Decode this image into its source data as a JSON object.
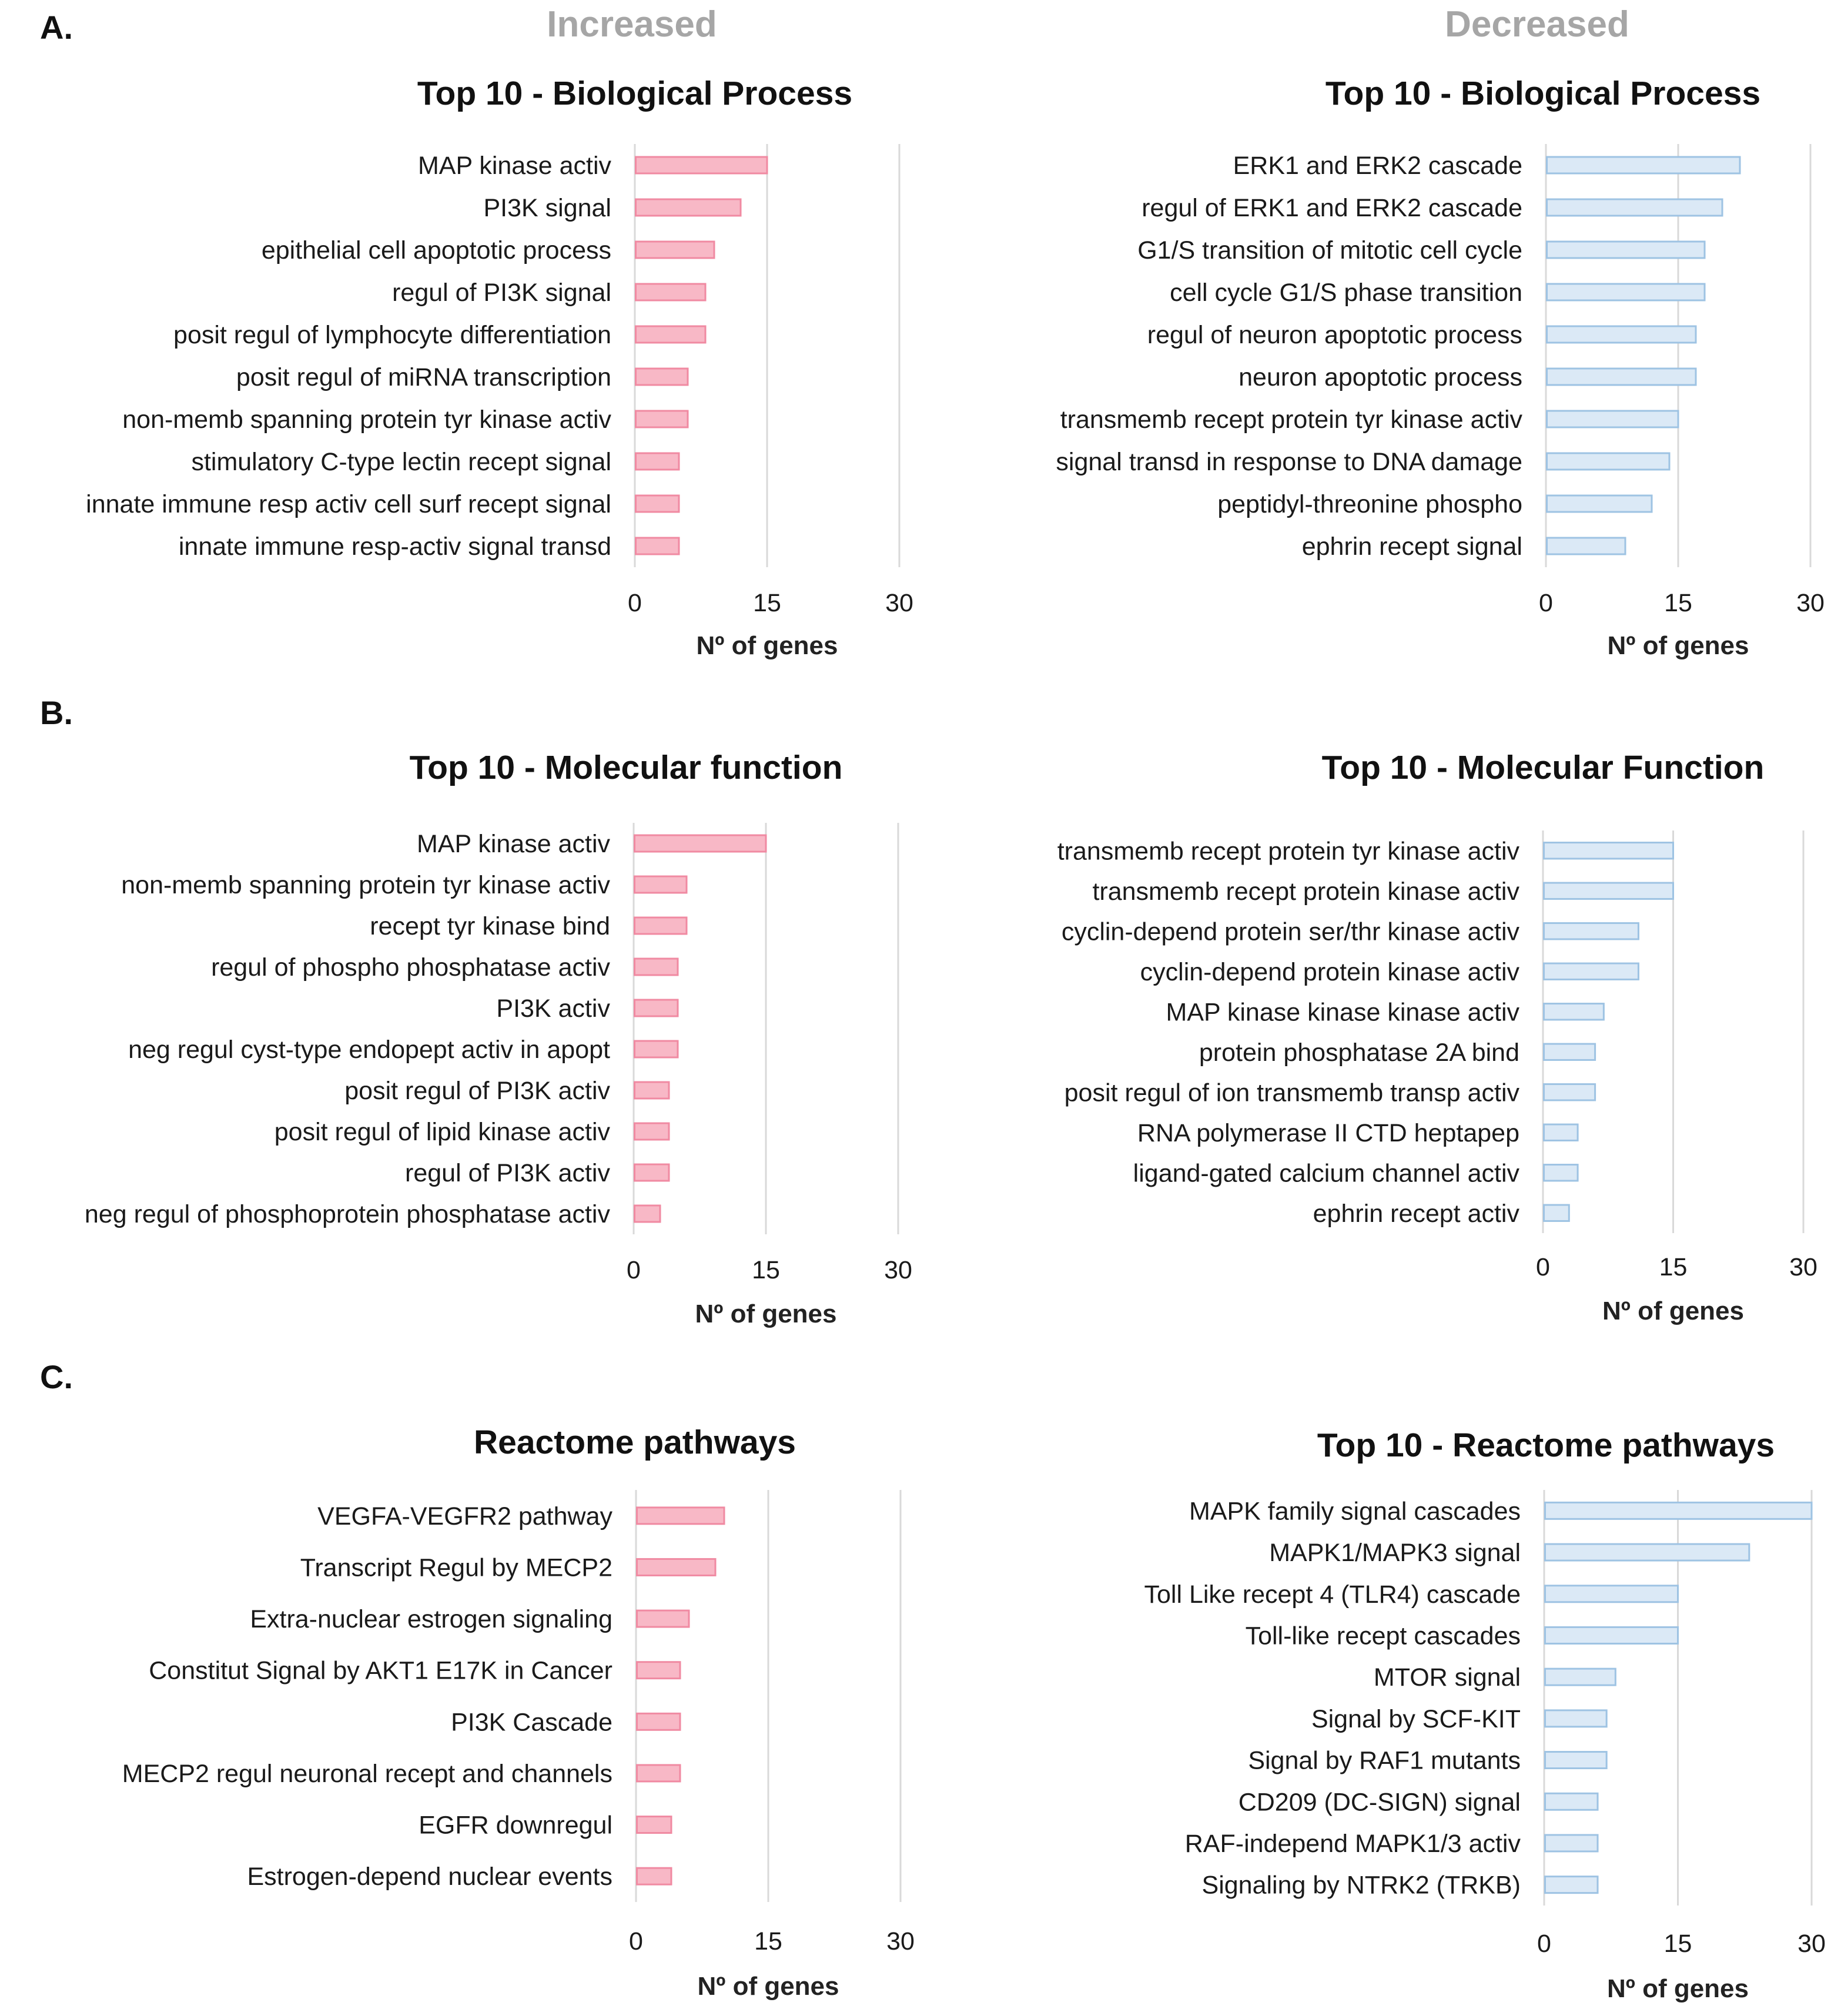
{
  "headers": {
    "left": "Increased",
    "right": "Decreased"
  },
  "sections": [
    {
      "label": "A.",
      "panel_keys": [
        "A_increased",
        "A_decreased"
      ]
    },
    {
      "label": "B.",
      "panel_keys": [
        "B_increased",
        "B_decreased"
      ]
    },
    {
      "label": "C.",
      "panel_keys": [
        "C_increased",
        "C_decreased"
      ]
    }
  ],
  "colors": {
    "increased_fill": "#f8b8c6",
    "increased_stroke": "#f08aa2",
    "decreased_fill": "#dbe9f6",
    "decreased_stroke": "#9ec3e3",
    "grid": "#d9d9d9",
    "text": "#1a1a1a",
    "axis_title": "#222222"
  },
  "chart_data": [
    {
      "key": "A_increased",
      "type": "bar",
      "orientation": "horizontal",
      "group": "Increased",
      "title": "Top 10 - Biological Process",
      "xlabel": "Nº of genes",
      "xlim": [
        0,
        30
      ],
      "xticks": [
        "0",
        "15",
        "30"
      ],
      "categories": [
        "MAP kinase activ",
        "PI3K signal",
        "epithelial cell apoptotic process",
        "regul of PI3K signal",
        "posit regul of lymphocyte differentiation",
        "posit regul of miRNA transcription",
        "non-memb spanning protein tyr kinase activ",
        "stimulatory C-type lectin recept signal",
        "innate immune resp activ cell surf recept signal",
        "innate immune resp-activ signal transd"
      ],
      "values": [
        15,
        12,
        9,
        8,
        8,
        6,
        6,
        5,
        5,
        5
      ]
    },
    {
      "key": "A_decreased",
      "type": "bar",
      "orientation": "horizontal",
      "group": "Decreased",
      "title": "Top 10 - Biological Process",
      "xlabel": "Nº of genes",
      "xlim": [
        0,
        30
      ],
      "xticks": [
        "0",
        "15",
        "30"
      ],
      "categories": [
        "ERK1 and ERK2 cascade",
        "regul of ERK1 and ERK2 cascade",
        "G1/S transition of mitotic cell cycle",
        "cell cycle G1/S phase transition",
        "regul of neuron apoptotic process",
        "neuron apoptotic process",
        "transmemb recept protein tyr kinase activ",
        "signal transd in response to DNA damage",
        "peptidyl-threonine phospho",
        "ephrin recept signal"
      ],
      "values": [
        22,
        20,
        18,
        18,
        17,
        17,
        15,
        14,
        12,
        9
      ]
    },
    {
      "key": "B_increased",
      "type": "bar",
      "orientation": "horizontal",
      "group": "Increased",
      "title": "Top 10 - Molecular function",
      "xlabel": "Nº of genes",
      "xlim": [
        0,
        30
      ],
      "xticks": [
        "0",
        "15",
        "30"
      ],
      "categories": [
        "MAP kinase activ",
        "non-memb spanning protein tyr kinase activ",
        "recept tyr kinase bind",
        "regul of phospho phosphatase activ",
        "PI3K activ",
        "neg regul cyst-type endopept activ in apopt",
        "posit regul of PI3K activ",
        "posit regul of lipid kinase activ",
        "regul of PI3K activ",
        "neg regul of phosphoprotein phosphatase activ"
      ],
      "values": [
        15,
        6,
        6,
        5,
        5,
        5,
        4,
        4,
        4,
        3
      ]
    },
    {
      "key": "B_decreased",
      "type": "bar",
      "orientation": "horizontal",
      "group": "Decreased",
      "title": "Top 10 - Molecular Function",
      "xlabel": "Nº of genes",
      "xlim": [
        0,
        30
      ],
      "xticks": [
        "0",
        "15",
        "30"
      ],
      "categories": [
        "transmemb recept protein tyr kinase activ",
        "transmemb recept protein kinase activ",
        "cyclin-depend protein ser/thr kinase activ",
        "cyclin-depend protein kinase activ",
        "MAP kinase kinase kinase activ",
        "protein phosphatase 2A bind",
        "posit regul of ion transmemb transp activ",
        "RNA polymerase II CTD heptapep",
        "ligand-gated calcium channel activ",
        "ephrin recept activ"
      ],
      "values": [
        15,
        15,
        11,
        11,
        7,
        6,
        6,
        4,
        4,
        3
      ]
    },
    {
      "key": "C_increased",
      "type": "bar",
      "orientation": "horizontal",
      "group": "Increased",
      "title": "Reactome pathways",
      "xlabel": "Nº of genes",
      "xlim": [
        0,
        30
      ],
      "xticks": [
        "0",
        "15",
        "30"
      ],
      "categories": [
        "VEGFA-VEGFR2 pathway",
        "Transcript Regul by MECP2",
        "Extra-nuclear estrogen signaling",
        "Constitut Signal by AKT1 E17K in Cancer",
        "PI3K Cascade",
        "MECP2 regul neuronal recept and channels",
        "EGFR downregul",
        "Estrogen-depend nuclear events"
      ],
      "values": [
        10,
        9,
        6,
        5,
        5,
        5,
        4,
        4
      ]
    },
    {
      "key": "C_decreased",
      "type": "bar",
      "orientation": "horizontal",
      "group": "Decreased",
      "title": "Top 10 - Reactome pathways",
      "xlabel": "Nº of genes",
      "xlim": [
        0,
        30
      ],
      "xticks": [
        "0",
        "15",
        "30"
      ],
      "categories": [
        "MAPK family signal cascades",
        "MAPK1/MAPK3 signal",
        "Toll Like recept 4 (TLR4) cascade",
        "Toll-like recept cascades",
        "MTOR signal",
        "Signal by SCF-KIT",
        "Signal by RAF1 mutants",
        "CD209 (DC-SIGN) signal",
        "RAF-independ MAPK1/3 activ",
        "Signaling by NTRK2 (TRKB)"
      ],
      "values": [
        30,
        23,
        15,
        15,
        8,
        7,
        7,
        6,
        6,
        6
      ]
    }
  ]
}
